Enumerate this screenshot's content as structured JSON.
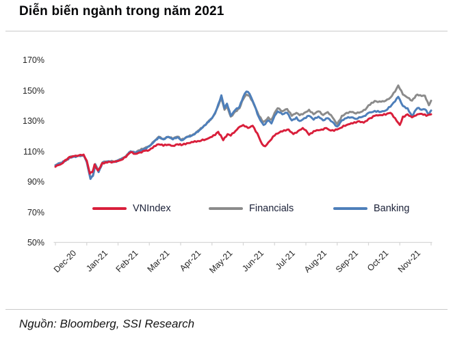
{
  "header": {
    "title": "Diễn biến ngành trong năm 2021"
  },
  "footer": {
    "source": "Nguồn: Bloomberg, SSI Research"
  },
  "colors": {
    "vnindex_red": "#d91f3b",
    "financials_gray": "#8b8b8b",
    "banking_blue": "#4e7fba",
    "axis_line": "#d6d6d6",
    "divider": "#c9c9c9"
  },
  "chart_data": {
    "type": "line",
    "title": "Diễn biến ngành trong năm 2021",
    "x_axis": {
      "categories": [
        "Dec-20",
        "Jan-21",
        "Feb-21",
        "Mar-21",
        "Apr-21",
        "May-21",
        "Jun-21",
        "Jul-21",
        "Aug-21",
        "Sep-21",
        "Oct-21",
        "Nov-21"
      ],
      "note": "series x values are months from start of Dec-20, range 0-12"
    },
    "y_axis": {
      "tick_labels": [
        "170%",
        "150%",
        "130%",
        "110%",
        "90%",
        "70%",
        "50%"
      ],
      "tick_values": [
        170,
        150,
        130,
        110,
        90,
        70,
        50
      ],
      "min": 50,
      "max": 170,
      "unit": "%",
      "grid": false
    },
    "legend": {
      "position": "inside-bottom",
      "items": [
        "VNIndex",
        "Financials",
        "Banking"
      ]
    },
    "series": [
      {
        "name": "VNIndex",
        "color": "#d91f3b",
        "z": 2,
        "points": [
          [
            0,
            100
          ],
          [
            0.2,
            102
          ],
          [
            0.45,
            106.5
          ],
          [
            0.6,
            107
          ],
          [
            0.75,
            107.5
          ],
          [
            0.9,
            108
          ],
          [
            1.0,
            104
          ],
          [
            1.1,
            95.5
          ],
          [
            1.18,
            96.5
          ],
          [
            1.25,
            101.5
          ],
          [
            1.36,
            97.5
          ],
          [
            1.5,
            102.5
          ],
          [
            1.7,
            103.3
          ],
          [
            1.9,
            103.2
          ],
          [
            2.1,
            104.5
          ],
          [
            2.25,
            106.3
          ],
          [
            2.4,
            109.5
          ],
          [
            2.55,
            108.5
          ],
          [
            2.7,
            109.5
          ],
          [
            2.85,
            110.5
          ],
          [
            3.0,
            111
          ],
          [
            3.15,
            113.5
          ],
          [
            3.3,
            114.8
          ],
          [
            3.45,
            113.8
          ],
          [
            3.6,
            114.5
          ],
          [
            3.75,
            113.8
          ],
          [
            3.9,
            114.8
          ],
          [
            4.02,
            114.2
          ],
          [
            4.2,
            115.5
          ],
          [
            4.4,
            116.2
          ],
          [
            4.6,
            116.8
          ],
          [
            4.8,
            118
          ],
          [
            5.0,
            119.7
          ],
          [
            5.2,
            123
          ],
          [
            5.36,
            117.5
          ],
          [
            5.5,
            121.5
          ],
          [
            5.6,
            120.5
          ],
          [
            5.75,
            123.5
          ],
          [
            5.9,
            126.5
          ],
          [
            6.0,
            127.5
          ],
          [
            6.15,
            125.5
          ],
          [
            6.3,
            127
          ],
          [
            6.45,
            122
          ],
          [
            6.6,
            115
          ],
          [
            6.7,
            113.5
          ],
          [
            6.85,
            117
          ],
          [
            7.0,
            120.5
          ],
          [
            7.15,
            122.5
          ],
          [
            7.3,
            124
          ],
          [
            7.45,
            124.5
          ],
          [
            7.6,
            121.5
          ],
          [
            7.75,
            123.5
          ],
          [
            7.9,
            125.5
          ],
          [
            8.0,
            124
          ],
          [
            8.1,
            121
          ],
          [
            8.3,
            123.5
          ],
          [
            8.5,
            124.5
          ],
          [
            8.65,
            125.5
          ],
          [
            8.8,
            123.8
          ],
          [
            9.0,
            124.5
          ],
          [
            9.1,
            125.5
          ],
          [
            9.3,
            127.5
          ],
          [
            9.5,
            128.5
          ],
          [
            9.7,
            130
          ],
          [
            9.85,
            129
          ],
          [
            10.0,
            131.5
          ],
          [
            10.2,
            133.5
          ],
          [
            10.4,
            134
          ],
          [
            10.55,
            134.2
          ],
          [
            10.7,
            135.5
          ],
          [
            10.85,
            132
          ],
          [
            11.0,
            127.5
          ],
          [
            11.1,
            133
          ],
          [
            11.25,
            134.5
          ],
          [
            11.39,
            132.5
          ],
          [
            11.56,
            134.5
          ],
          [
            11.7,
            134.8
          ],
          [
            11.85,
            133.5
          ],
          [
            12.0,
            134.5
          ]
        ]
      },
      {
        "name": "Financials",
        "color": "#8b8b8b",
        "z": 0,
        "points": [
          [
            0,
            101
          ],
          [
            0.2,
            102.5
          ],
          [
            0.45,
            106.2
          ],
          [
            0.6,
            107
          ],
          [
            0.75,
            107.4
          ],
          [
            0.9,
            107.7
          ],
          [
            1.0,
            103.5
          ],
          [
            1.12,
            92.5
          ],
          [
            1.2,
            94.5
          ],
          [
            1.27,
            101.8
          ],
          [
            1.38,
            97
          ],
          [
            1.5,
            102.8
          ],
          [
            1.7,
            103.7
          ],
          [
            1.9,
            103.6
          ],
          [
            2.1,
            105.2
          ],
          [
            2.25,
            107
          ],
          [
            2.4,
            110.2
          ],
          [
            2.55,
            109.2
          ],
          [
            2.7,
            110.8
          ],
          [
            2.85,
            112.3
          ],
          [
            3.0,
            113.8
          ],
          [
            3.15,
            116.8
          ],
          [
            3.3,
            119.8
          ],
          [
            3.45,
            118.3
          ],
          [
            3.6,
            119.8
          ],
          [
            3.75,
            118.3
          ],
          [
            3.9,
            119.8
          ],
          [
            4.02,
            117.8
          ],
          [
            4.2,
            119.8
          ],
          [
            4.4,
            121.3
          ],
          [
            4.6,
            124.3
          ],
          [
            4.8,
            127.8
          ],
          [
            5.0,
            132
          ],
          [
            5.1,
            135
          ],
          [
            5.2,
            140
          ],
          [
            5.3,
            145
          ],
          [
            5.4,
            137.5
          ],
          [
            5.48,
            140
          ],
          [
            5.6,
            133
          ],
          [
            5.75,
            136.5
          ],
          [
            5.88,
            138.5
          ],
          [
            6.0,
            144.5
          ],
          [
            6.1,
            147.5
          ],
          [
            6.2,
            146.5
          ],
          [
            6.35,
            140.5
          ],
          [
            6.5,
            133.5
          ],
          [
            6.65,
            129.5
          ],
          [
            6.8,
            132.5
          ],
          [
            6.9,
            131
          ],
          [
            7.0,
            135.5
          ],
          [
            7.1,
            138.5
          ],
          [
            7.25,
            136.5
          ],
          [
            7.4,
            138
          ],
          [
            7.55,
            133.5
          ],
          [
            7.7,
            135.5
          ],
          [
            7.8,
            133.9
          ],
          [
            7.95,
            135.5
          ],
          [
            8.1,
            137.5
          ],
          [
            8.25,
            134.5
          ],
          [
            8.4,
            136.5
          ],
          [
            8.55,
            134
          ],
          [
            8.7,
            136
          ],
          [
            8.85,
            132.5
          ],
          [
            9.0,
            128
          ],
          [
            9.15,
            133.5
          ],
          [
            9.3,
            135.5
          ],
          [
            9.45,
            136
          ],
          [
            9.6,
            135
          ],
          [
            9.75,
            136
          ],
          [
            9.9,
            137.5
          ],
          [
            10.0,
            140.5
          ],
          [
            10.2,
            143.3
          ],
          [
            10.4,
            142.8
          ],
          [
            10.55,
            143.5
          ],
          [
            10.7,
            145.5
          ],
          [
            10.85,
            149.5
          ],
          [
            10.95,
            153.5
          ],
          [
            11.1,
            147.5
          ],
          [
            11.25,
            145.5
          ],
          [
            11.39,
            143.5
          ],
          [
            11.56,
            147.5
          ],
          [
            11.7,
            146.5
          ],
          [
            11.8,
            146.8
          ],
          [
            11.93,
            140.5
          ],
          [
            12.0,
            143.5
          ]
        ]
      },
      {
        "name": "Banking",
        "color": "#4e7fba",
        "z": 1,
        "points": [
          [
            0,
            101
          ],
          [
            0.2,
            102.5
          ],
          [
            0.45,
            106
          ],
          [
            0.6,
            106.8
          ],
          [
            0.75,
            107.2
          ],
          [
            0.9,
            107.5
          ],
          [
            1.0,
            103
          ],
          [
            1.12,
            92
          ],
          [
            1.2,
            94
          ],
          [
            1.27,
            101.5
          ],
          [
            1.38,
            96.5
          ],
          [
            1.5,
            102.5
          ],
          [
            1.7,
            103.5
          ],
          [
            1.9,
            103.4
          ],
          [
            2.1,
            105
          ],
          [
            2.25,
            106.8
          ],
          [
            2.4,
            110
          ],
          [
            2.55,
            109
          ],
          [
            2.7,
            110.5
          ],
          [
            2.85,
            112
          ],
          [
            3.0,
            113.5
          ],
          [
            3.15,
            116.5
          ],
          [
            3.3,
            119.5
          ],
          [
            3.45,
            118
          ],
          [
            3.6,
            119.5
          ],
          [
            3.75,
            118
          ],
          [
            3.9,
            119.5
          ],
          [
            4.02,
            117.4
          ],
          [
            4.2,
            119.5
          ],
          [
            4.4,
            121
          ],
          [
            4.6,
            124
          ],
          [
            4.8,
            127.5
          ],
          [
            5.0,
            132
          ],
          [
            5.1,
            135.5
          ],
          [
            5.2,
            141
          ],
          [
            5.3,
            147
          ],
          [
            5.4,
            138.5
          ],
          [
            5.48,
            141.5
          ],
          [
            5.6,
            133.5
          ],
          [
            5.75,
            137.5
          ],
          [
            5.88,
            139.5
          ],
          [
            6.0,
            146
          ],
          [
            6.1,
            149.5
          ],
          [
            6.2,
            148
          ],
          [
            6.35,
            141
          ],
          [
            6.5,
            132.5
          ],
          [
            6.65,
            127.5
          ],
          [
            6.8,
            130.5
          ],
          [
            6.9,
            128.5
          ],
          [
            7.0,
            133.5
          ],
          [
            7.1,
            136.5
          ],
          [
            7.25,
            134.5
          ],
          [
            7.4,
            135.5
          ],
          [
            7.55,
            130.5
          ],
          [
            7.7,
            132.5
          ],
          [
            7.8,
            130.1
          ],
          [
            7.95,
            132
          ],
          [
            8.1,
            133.5
          ],
          [
            8.25,
            131
          ],
          [
            8.4,
            133
          ],
          [
            8.55,
            130.5
          ],
          [
            8.7,
            132
          ],
          [
            8.85,
            129.5
          ],
          [
            9.0,
            126.5
          ],
          [
            9.15,
            130.5
          ],
          [
            9.3,
            132
          ],
          [
            9.45,
            132.5
          ],
          [
            9.6,
            131.5
          ],
          [
            9.75,
            132.5
          ],
          [
            9.9,
            133.5
          ],
          [
            10.0,
            135.5
          ],
          [
            10.2,
            136.8
          ],
          [
            10.4,
            136.2
          ],
          [
            10.55,
            137
          ],
          [
            10.7,
            139.5
          ],
          [
            10.85,
            143
          ],
          [
            10.95,
            146
          ],
          [
            11.1,
            140
          ],
          [
            11.25,
            138.5
          ],
          [
            11.39,
            133.5
          ],
          [
            11.56,
            138.6
          ],
          [
            11.7,
            137.5
          ],
          [
            11.8,
            137.8
          ],
          [
            11.93,
            134.5
          ],
          [
            12.0,
            137
          ]
        ]
      }
    ]
  }
}
